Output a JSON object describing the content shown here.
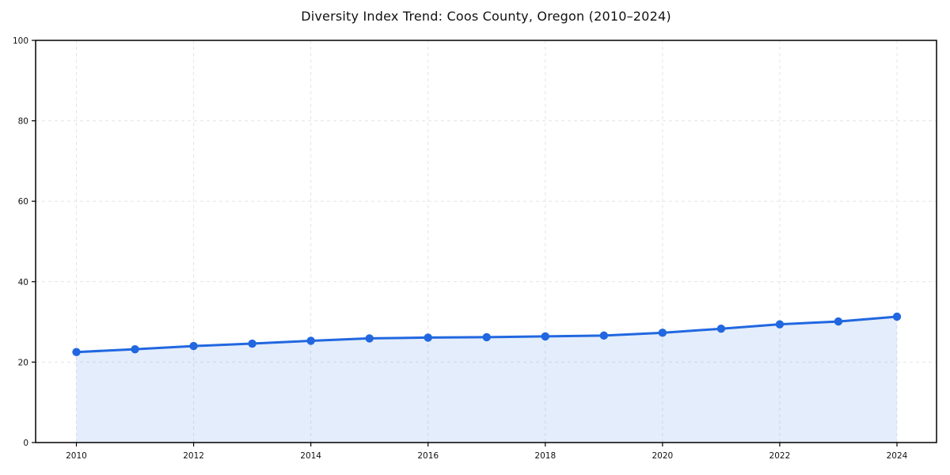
{
  "page": {
    "title": "Diversity Index Trend: Coos County, Oregon (2010–2024)"
  },
  "chart_data": {
    "type": "line",
    "title": "Diversity Index Trend: Coos County, Oregon (2010–2024)",
    "x": [
      2010,
      2011,
      2012,
      2013,
      2014,
      2015,
      2016,
      2017,
      2018,
      2019,
      2020,
      2021,
      2022,
      2023,
      2024
    ],
    "series": [
      {
        "name": "Diversity Index",
        "values": [
          22.5,
          23.2,
          24.0,
          24.6,
          25.3,
          25.9,
          26.1,
          26.2,
          26.4,
          26.6,
          27.3,
          28.3,
          29.4,
          30.1,
          31.3
        ]
      }
    ],
    "xlabel": "",
    "ylabel": "",
    "ylim": [
      0,
      100
    ],
    "yticks": [
      0,
      20,
      40,
      60,
      80,
      100
    ],
    "xticks": [
      2010,
      2012,
      2014,
      2016,
      2018,
      2020,
      2022,
      2024
    ],
    "grid": "dashed",
    "legend": "none",
    "style": {
      "line_color": "#2167e0",
      "fill_opacity": 0.12,
      "marker_radius": 5.2,
      "line_width": 3,
      "grid_color": "#e4e4e4",
      "frame_color": "#000000",
      "tick_color": "#111111",
      "background": "#ffffff"
    }
  }
}
